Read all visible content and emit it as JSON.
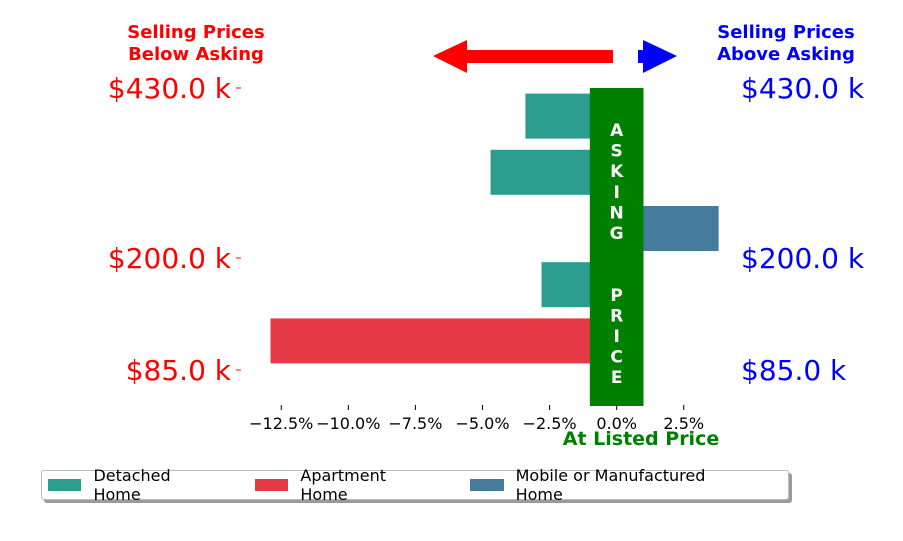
{
  "chart_data": {
    "type": "bar",
    "orientation": "horizontal",
    "title_left": [
      "Selling Prices",
      "Below Asking"
    ],
    "title_right": [
      "Selling Prices",
      "Above Asking"
    ],
    "xlabel": "At Listed Price",
    "center_label": "ASKING  PRICE",
    "xlim": [
      -14.0,
      4.0
    ],
    "xticks": [
      -12.5,
      -10.0,
      -7.5,
      -5.0,
      -2.5,
      0.0,
      2.5
    ],
    "xtick_labels": [
      "−12.5%",
      "−10.0%",
      "−7.5%",
      "−5.0%",
      "−2.5%",
      "0.0%",
      "2.5%"
    ],
    "y_tick_labels": [
      "$430.0 k",
      "$200.0 k",
      "$85.0 k"
    ],
    "bars": [
      {
        "row": 1,
        "value": -3.4,
        "series": "Detached Home"
      },
      {
        "row": 2,
        "value": -4.7,
        "series": "Detached Home"
      },
      {
        "row": 3,
        "value": 3.8,
        "series": "Mobile or Manufactured Home"
      },
      {
        "row": 4,
        "value": -2.8,
        "series": "Detached Home"
      },
      {
        "row": 5,
        "value": -12.9,
        "series": "Apartment Home"
      }
    ],
    "legend_position": "bottom",
    "grid": false
  },
  "legend": [
    {
      "label": "Detached Home",
      "color": "#2a9d8f"
    },
    {
      "label": "Apartment Home",
      "color": "#e63946"
    },
    {
      "label": "Mobile or Manufactured Home",
      "color": "#457b9d"
    }
  ],
  "colors": {
    "below": "#ff0000",
    "above": "#0000ff",
    "asking": "#008000"
  }
}
